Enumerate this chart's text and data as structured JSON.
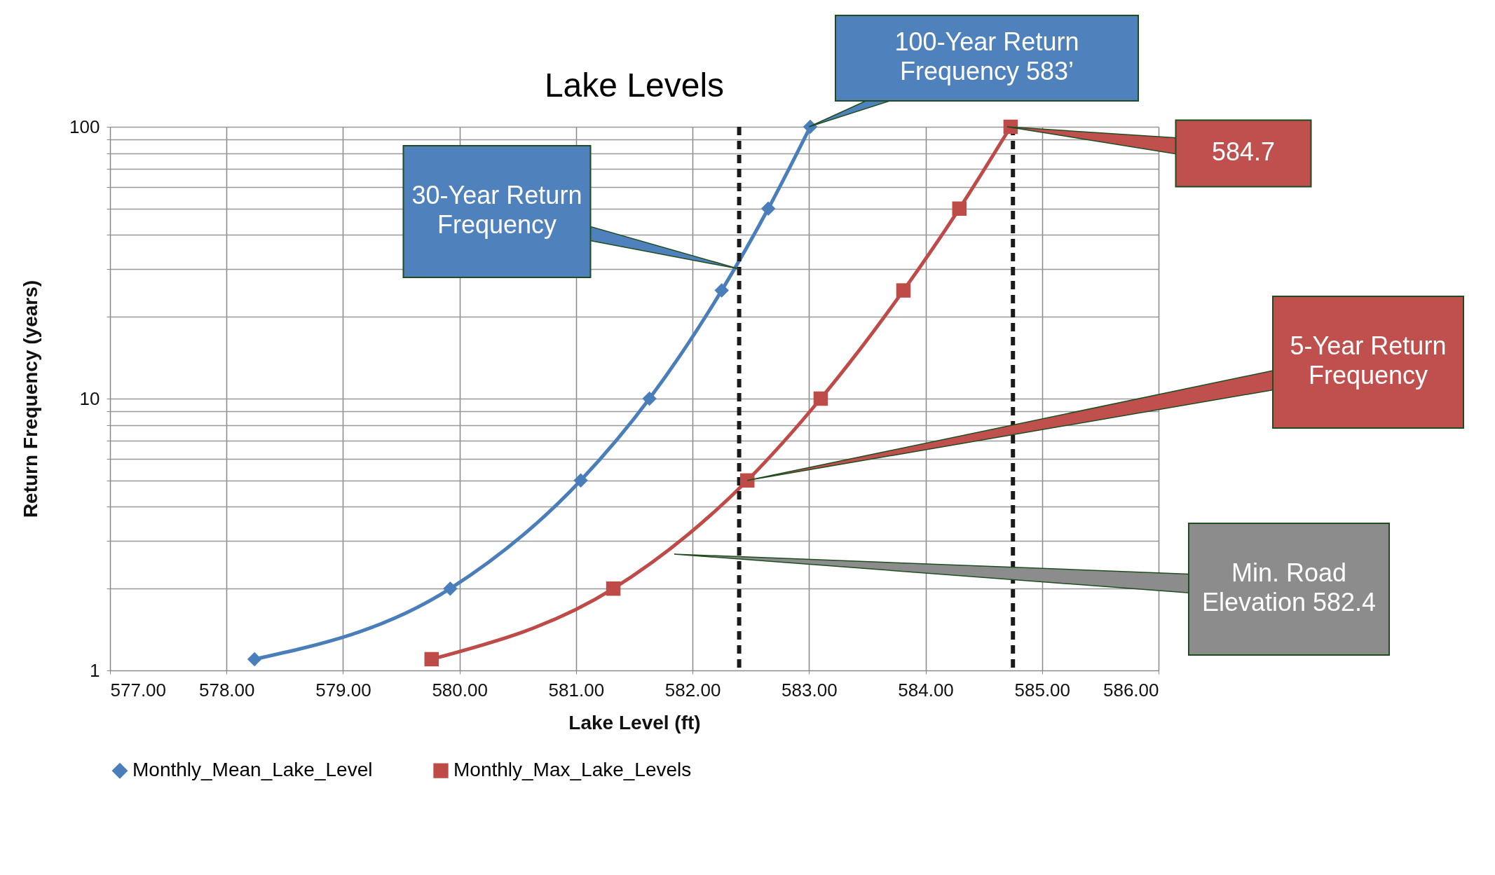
{
  "chart_data": {
    "type": "line",
    "title": "Lake Levels",
    "xlabel": "Lake Level (ft)",
    "ylabel": "Return Frequency (years)",
    "log": "y",
    "grid": true,
    "legend": "bottom",
    "line_style": "solid",
    "xlim": [
      577,
      586
    ],
    "xticks": [
      {
        "value": 577,
        "label": "577.00"
      },
      {
        "value": 578,
        "label": "578.00"
      },
      {
        "value": 579,
        "label": "579.00"
      },
      {
        "value": 580,
        "label": "580.00"
      },
      {
        "value": 581,
        "label": "581.00"
      },
      {
        "value": 582,
        "label": "582.00"
      },
      {
        "value": 583,
        "label": "583.00"
      },
      {
        "value": 584,
        "label": "584.00"
      },
      {
        "value": 585,
        "label": "585.00"
      },
      {
        "value": 586,
        "label": "586.00"
      }
    ],
    "ylim": [
      1,
      100
    ],
    "yticks": [
      1,
      {
        "value": 2,
        "label": null
      },
      {
        "value": 3,
        "label": null
      },
      {
        "value": 4,
        "label": null
      },
      {
        "value": 5,
        "label": null
      },
      {
        "value": 6,
        "label": null
      },
      {
        "value": 7,
        "label": null
      },
      {
        "value": 8,
        "label": null
      },
      {
        "value": 9,
        "label": null
      },
      10,
      {
        "value": 20,
        "label": null
      },
      {
        "value": 30,
        "label": null
      },
      {
        "value": 40,
        "label": null
      },
      {
        "value": 50,
        "label": null
      },
      {
        "value": 60,
        "label": null
      },
      {
        "value": 70,
        "label": null
      },
      {
        "value": 80,
        "label": null
      },
      {
        "value": 90,
        "label": null
      },
      100
    ],
    "series": [
      {
        "name": "Monthly_Mean_Lake_Level",
        "color": "#4a7ebb",
        "marker": "diamond",
        "x": [
          578.24,
          579.92,
          581.04,
          581.63,
          582.25,
          582.65,
          583.01
        ],
        "values": [
          1.1,
          2,
          5,
          10,
          25,
          50,
          100
        ]
      },
      {
        "name": "Monthly_Max_Lake_Levels",
        "color": "#be4b48",
        "marker": "square",
        "x": [
          579.76,
          581.32,
          582.47,
          583.1,
          583.81,
          584.29,
          584.73
        ],
        "values": [
          1.1,
          2,
          5,
          10,
          25,
          50,
          100
        ]
      }
    ],
    "ref_lines": [
      {
        "axis": "x",
        "value": 582.4,
        "color": "#1a1a1a",
        "line_style": "dashed"
      },
      {
        "axis": "x",
        "value": 584.75,
        "color": "#1a1a1a",
        "line_style": "dashed"
      }
    ],
    "annotations": [
      {
        "text": "100-Year Return Frequency 583’",
        "x": 583,
        "y": 100
      },
      {
        "text": "30-Year Return Frequency",
        "x": 582.4,
        "y": 30
      },
      {
        "text": "584.7",
        "x": 584.7,
        "y": 100
      },
      {
        "text": "5-Year Return Frequency",
        "x": 582.47,
        "y": 5
      },
      "Min. Road Elevation 582.4"
    ]
  }
}
